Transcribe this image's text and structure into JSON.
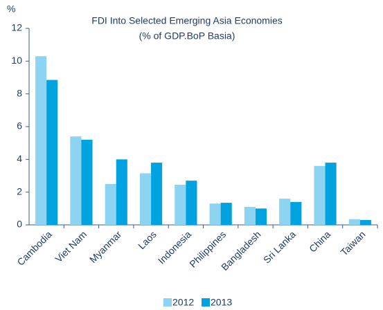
{
  "chart_data": {
    "type": "bar",
    "title": "FDI Into Selected Emerging Asia Economies",
    "subtitle": "(% of GDP.BoP Basia)",
    "y_label": "%",
    "categories": [
      "Cambodia",
      "Viet Nam",
      "Myanmar",
      "Laos",
      "Indonesia",
      "Philippines",
      "Bangladesh",
      "Sri Lanka",
      "China",
      "Taiwan"
    ],
    "series": [
      {
        "name": "2012",
        "color": "#8dd3f2",
        "values": [
          10.3,
          5.4,
          2.5,
          3.15,
          2.45,
          1.3,
          1.1,
          1.6,
          3.6,
          0.35
        ]
      },
      {
        "name": "2013",
        "color": "#00a3e0",
        "values": [
          8.85,
          5.2,
          4.0,
          3.8,
          2.7,
          1.35,
          1.0,
          1.4,
          3.8,
          0.3
        ]
      }
    ],
    "ylim": [
      0,
      12
    ],
    "yticks": [
      0,
      2,
      4,
      6,
      8,
      10,
      12
    ],
    "grid": false,
    "legend": "bottom"
  }
}
